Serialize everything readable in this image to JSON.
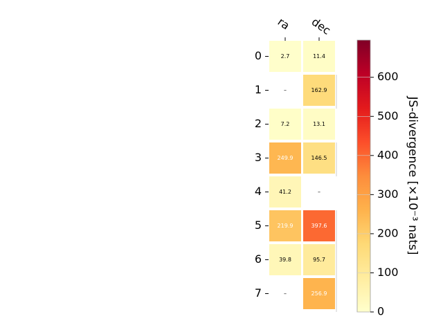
{
  "chart_data": {
    "type": "heatmap",
    "title": "",
    "columns": [
      "ra",
      "dec"
    ],
    "rows": [
      "0",
      "1",
      "2",
      "3",
      "4",
      "5",
      "6",
      "7"
    ],
    "values": [
      [
        2.7,
        11.4
      ],
      [
        null,
        162.9
      ],
      [
        7.2,
        13.1
      ],
      [
        249.9,
        146.5
      ],
      [
        41.2,
        null
      ],
      [
        219.9,
        397.6
      ],
      [
        39.8,
        95.7
      ],
      [
        null,
        256.9
      ]
    ],
    "missing_label": "–",
    "colorbar": {
      "label": "JS-divergence [×10⁻³ nats]",
      "ticks": [
        "0",
        "100",
        "200",
        "300",
        "400",
        "500",
        "600"
      ],
      "range": [
        0,
        695
      ],
      "colormap": "YlOrRd"
    }
  }
}
